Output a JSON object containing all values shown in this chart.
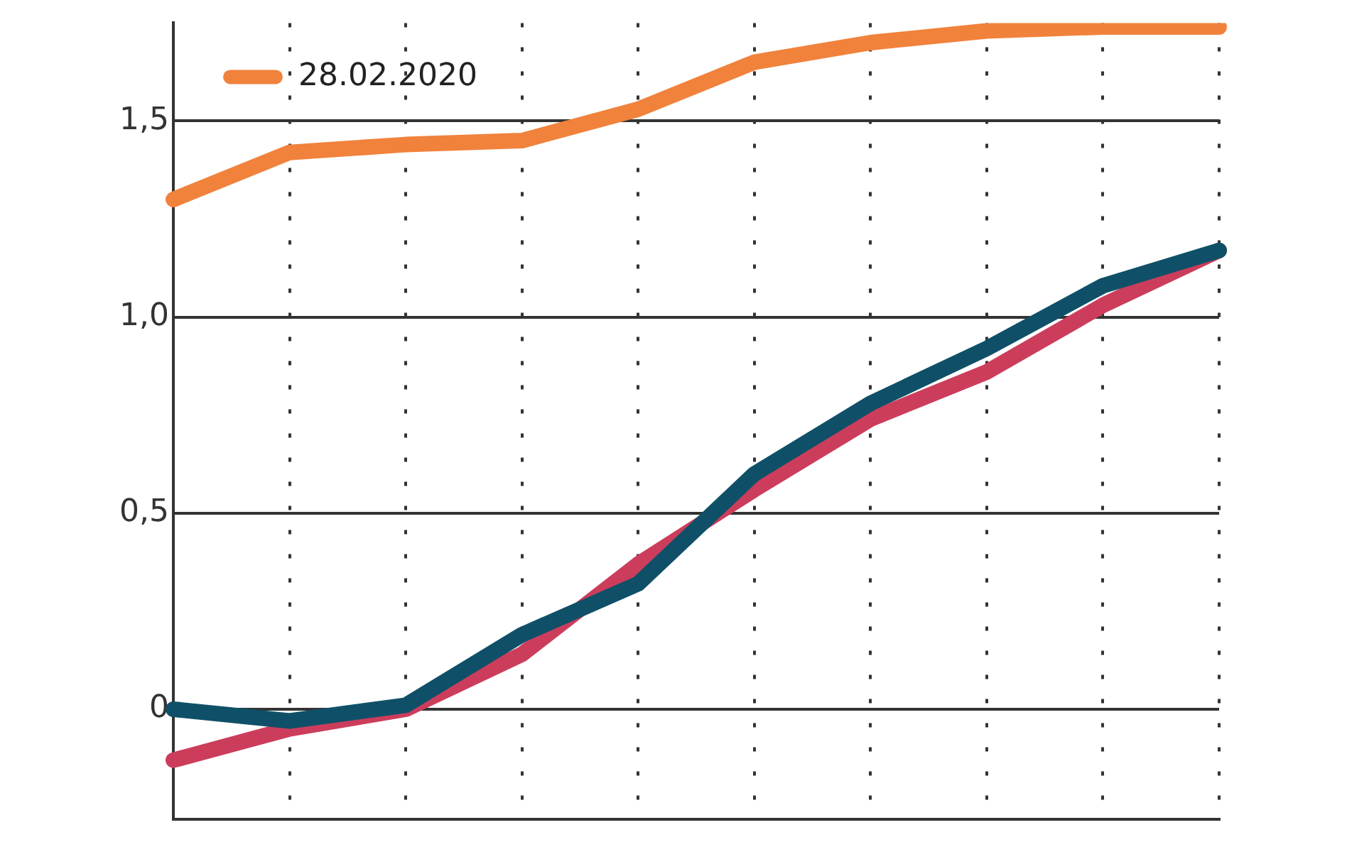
{
  "chart_data": {
    "type": "line",
    "categories": [
      null,
      null,
      null,
      null,
      null,
      null,
      null,
      null,
      null,
      null
    ],
    "series": [
      {
        "name": "28.02.2020",
        "color": "#f0823c",
        "values": [
          1.3,
          1.42,
          1.44,
          1.45,
          1.53,
          1.65,
          1.7,
          1.73,
          1.74,
          1.74
        ]
      },
      {
        "color": "#0f5068",
        "values": [
          0.0,
          -0.03,
          0.01,
          0.19,
          0.32,
          0.6,
          0.78,
          0.92,
          1.08,
          1.17
        ]
      },
      {
        "color": "#cc3d5c",
        "values": [
          -0.13,
          -0.05,
          0.0,
          0.14,
          0.37,
          0.56,
          0.74,
          0.86,
          1.03,
          1.17
        ]
      }
    ],
    "ylim": [
      -0.28,
      1.75
    ],
    "yticks": [
      {
        "value": 0,
        "label": "0"
      },
      {
        "value": 0.5,
        "label": "0,5"
      },
      {
        "value": 1,
        "label": "1,0"
      },
      {
        "value": 1.5,
        "label": "1,5"
      }
    ],
    "grid": true,
    "legend": "top left",
    "marker": "none",
    "line_style": "solid",
    "tick_labels": "y"
  }
}
